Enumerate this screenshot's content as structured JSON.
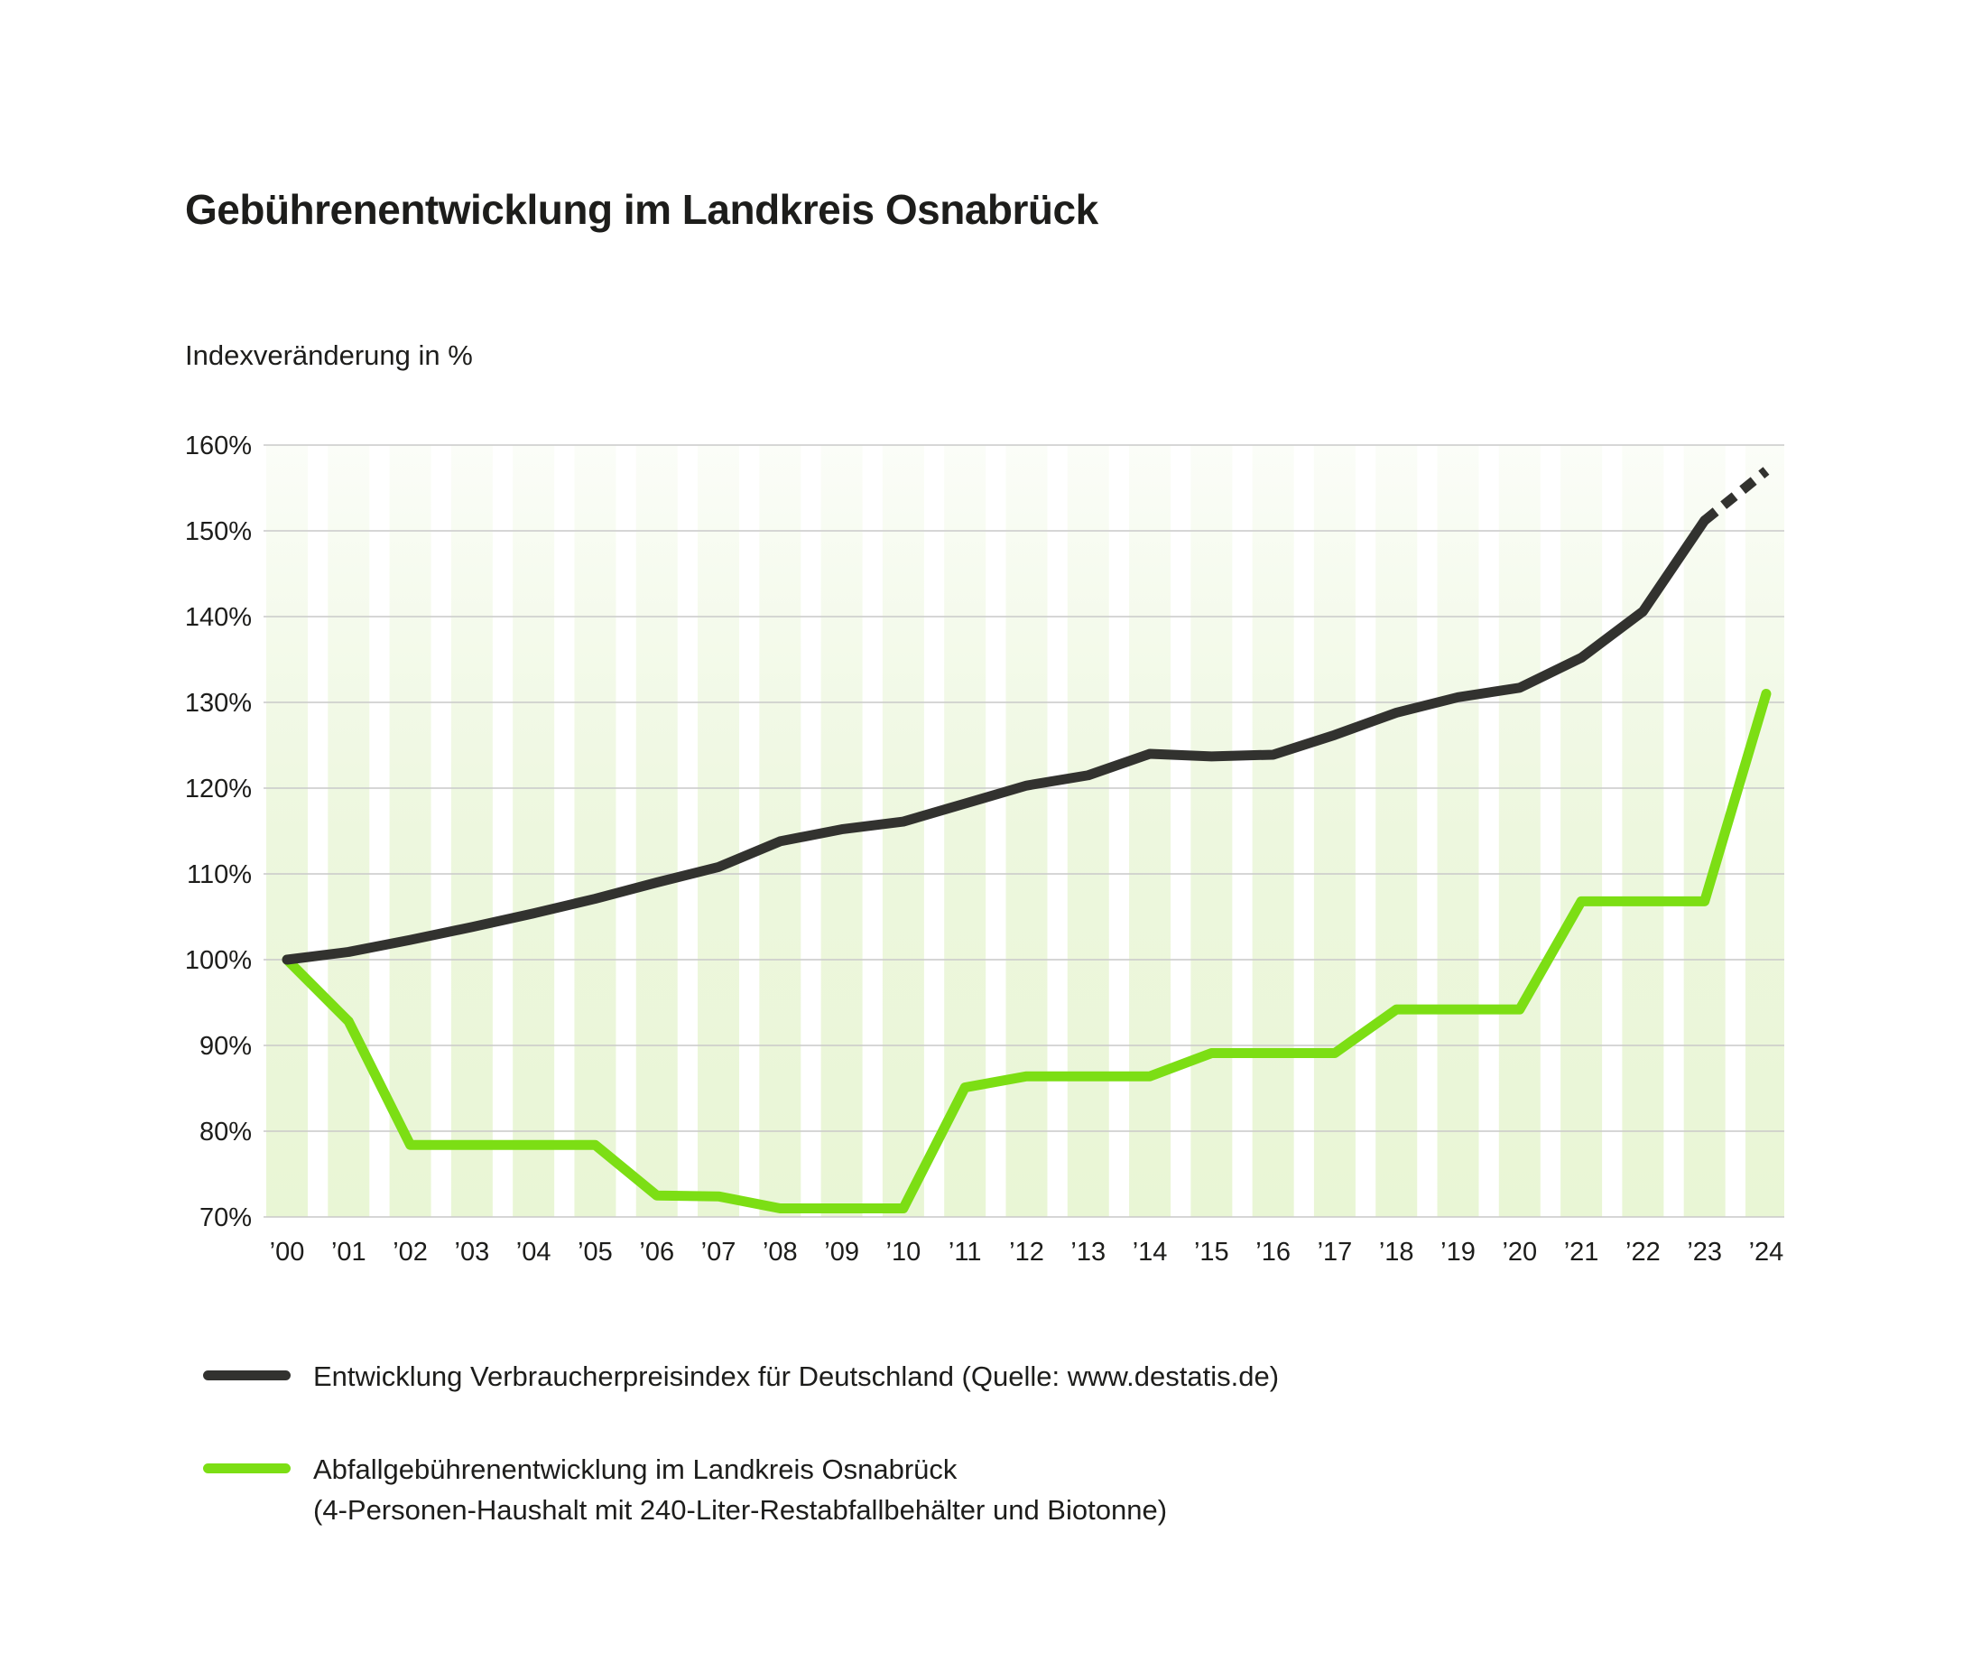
{
  "title": "Gebührenentwicklung im Landkreis Osnabrück",
  "subtitle": "Indexveränderung in %",
  "colors": {
    "background": "#FFFFFF",
    "text": "#1D1D1B",
    "grid": "#C9C9C9",
    "band_top": "#FBFDF8",
    "band_mid": "#EDF7DE",
    "band_bottom": "#E9F6D5",
    "vpi_line": "#32322F",
    "waste_line": "#7CDE14"
  },
  "legend": {
    "vpi": {
      "label": "Entwicklung Verbraucherpreisindex für Deutschland (Quelle: www.destatis.de)"
    },
    "abfall": {
      "line1": "Abfallgebührenentwicklung im Landkreis Osnabrück",
      "line2": "(4-Personen-Haushalt mit 240-Liter-Restabfallbehälter und Biotonne)"
    }
  },
  "chart_data": {
    "type": "line",
    "title": "Gebührenentwicklung im Landkreis Osnabrück",
    "ylabel": "Indexveränderung in %",
    "x": [
      "’00",
      "’01",
      "’02",
      "’03",
      "’04",
      "’05",
      "’06",
      "’07",
      "’08",
      "’09",
      "’10",
      "’11",
      "’12",
      "’13",
      "’14",
      "’15",
      "’16",
      "’17",
      "’18",
      "’19",
      "’20",
      "’21",
      "’22",
      "’23",
      "’24"
    ],
    "ylim": [
      70,
      160
    ],
    "ytick_step": 10,
    "ytick_suffix": "%",
    "grid": true,
    "legend_position": "bottom",
    "series": [
      {
        "name": "Entwicklung Verbraucherpreisindex für Deutschland (Quelle: www.destatis.de)",
        "color": "#32322F",
        "style": "solid",
        "projection_from_index": 23,
        "projection_style": "dashed",
        "values": [
          100.0,
          100.9,
          102.3,
          103.8,
          105.4,
          107.1,
          109.0,
          110.8,
          113.8,
          115.2,
          116.1,
          118.2,
          120.3,
          121.5,
          124.0,
          123.7,
          123.9,
          126.2,
          128.8,
          130.6,
          131.7,
          135.2,
          140.6,
          151.2,
          157.0
        ]
      },
      {
        "name": "Abfallgebührenentwicklung im Landkreis Osnabrück (4-Personen-Haushalt mit 240-Liter-Restabfallbehälter und Biotonne)",
        "color": "#7CDE14",
        "style": "solid",
        "values": [
          100.0,
          92.8,
          78.4,
          78.4,
          78.4,
          78.4,
          72.5,
          72.4,
          71.0,
          71.0,
          71.0,
          85.1,
          86.4,
          86.4,
          86.4,
          89.1,
          89.1,
          89.1,
          94.2,
          94.2,
          94.2,
          106.8,
          106.8,
          106.8,
          131.0
        ]
      }
    ]
  }
}
